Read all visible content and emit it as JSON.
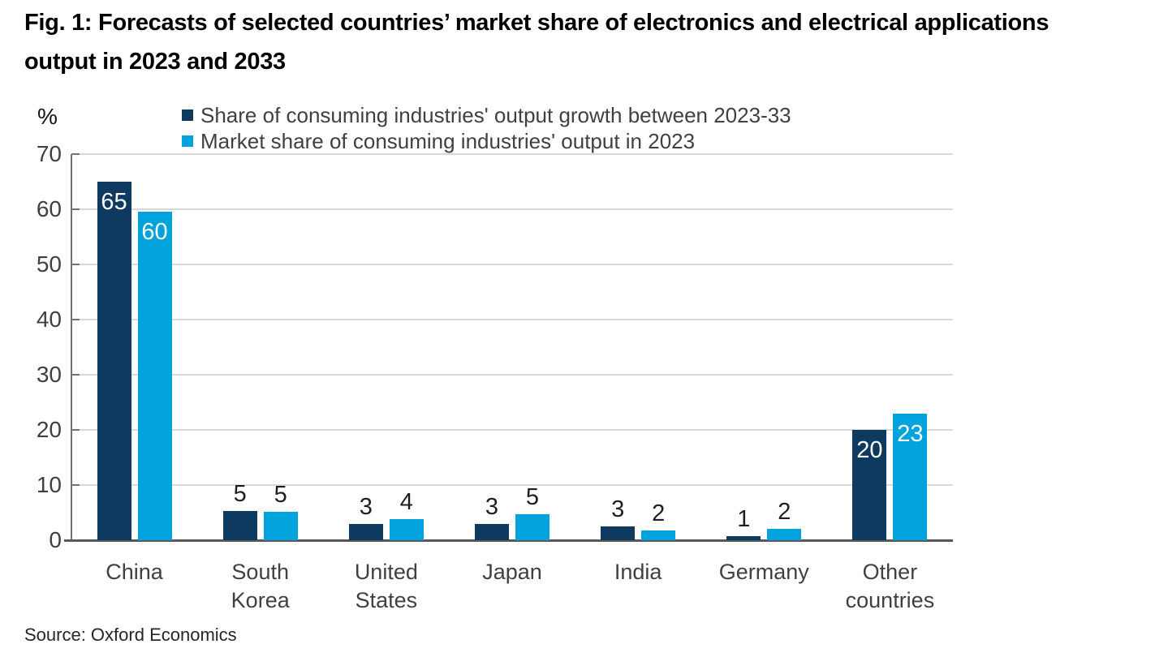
{
  "header": {
    "title_line1": "Fig. 1: Forecasts of selected countries’ market share of electronics and electrical applications",
    "title_line2": "output in 2023 and 2033"
  },
  "chart_data": {
    "type": "bar",
    "title": "Fig. 1: Forecasts of selected countries’ market share of electronics and electrical applications output in 2023 and 2033",
    "unit_label": "%",
    "categories": [
      "China",
      "South Korea",
      "United States",
      "Japan",
      "India",
      "Germany",
      "Other countries"
    ],
    "series": [
      {
        "name": "Share of consuming industries' output growth between 2023-33",
        "color": "#0F3A60",
        "values": [
          65,
          5,
          3,
          3,
          3,
          1,
          20
        ],
        "plot_values": [
          65,
          5.3,
          3.0,
          3.0,
          2.5,
          0.7,
          20
        ]
      },
      {
        "name": "Market share of consuming industries' output in 2023",
        "color": "#00A3DC",
        "values": [
          60,
          5,
          4,
          5,
          2,
          2,
          23
        ],
        "plot_values": [
          59.5,
          5.1,
          3.8,
          4.7,
          1.7,
          2.0,
          23
        ]
      }
    ],
    "ylim": [
      0,
      70
    ],
    "yticks": [
      0,
      10,
      20,
      30,
      40,
      50,
      60,
      70
    ],
    "grid": true,
    "legend_position": "top-center",
    "value_label_style": {
      "inside_color": "#ffffff",
      "outside_color": "#1f1f1f"
    }
  },
  "source": {
    "text": "Source: Oxford Economics"
  }
}
